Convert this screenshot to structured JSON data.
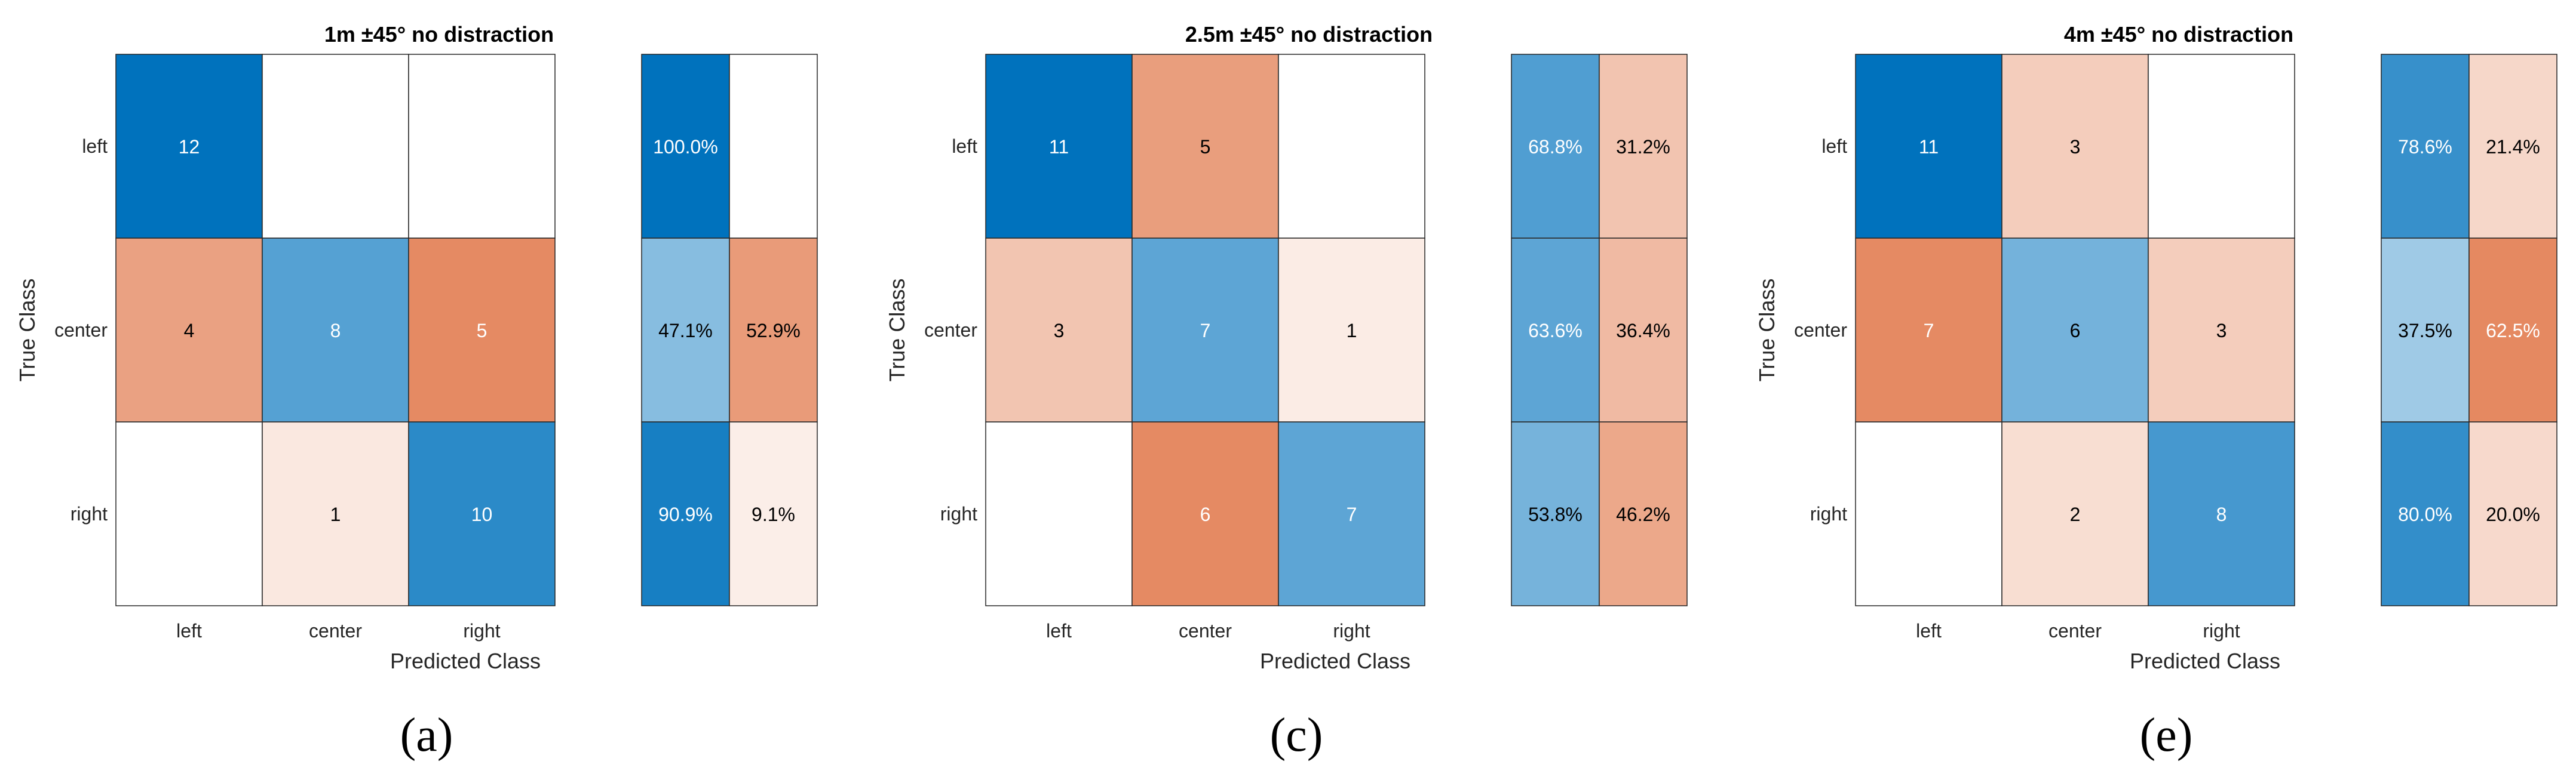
{
  "colors": {
    "positive": "#0072BD",
    "negative": "#D95319",
    "grid": "#262626"
  },
  "chart_data": [
    {
      "type": "heatmap",
      "caption": "(a)",
      "title": "1m ±45° no distraction",
      "xlabel": "Predicted Class",
      "ylabel": "True Class",
      "classes": [
        "left",
        "center",
        "right"
      ],
      "matrix": [
        [
          12,
          0,
          0
        ],
        [
          4,
          8,
          5
        ],
        [
          0,
          1,
          10
        ]
      ],
      "row_summary": [
        [
          "100.0%",
          ""
        ],
        [
          "47.1%",
          "52.9%"
        ],
        [
          "90.9%",
          "9.1%"
        ]
      ]
    },
    {
      "type": "heatmap",
      "caption": "(c)",
      "title": "2.5m ±45° no distraction",
      "xlabel": "Predicted Class",
      "ylabel": "True Class",
      "classes": [
        "left",
        "center",
        "right"
      ],
      "matrix": [
        [
          11,
          5,
          0
        ],
        [
          3,
          7,
          1
        ],
        [
          0,
          6,
          7
        ]
      ],
      "row_summary": [
        [
          "68.8%",
          "31.2%"
        ],
        [
          "63.6%",
          "36.4%"
        ],
        [
          "53.8%",
          "46.2%"
        ]
      ]
    },
    {
      "type": "heatmap",
      "caption": "(e)",
      "title": "4m ±45° no distraction",
      "xlabel": "Predicted Class",
      "ylabel": "True Class",
      "classes": [
        "left",
        "center",
        "right"
      ],
      "matrix": [
        [
          11,
          3,
          0
        ],
        [
          7,
          6,
          3
        ],
        [
          0,
          2,
          8
        ]
      ],
      "row_summary": [
        [
          "78.6%",
          "21.4%"
        ],
        [
          "37.5%",
          "62.5%"
        ],
        [
          "80.0%",
          "20.0%"
        ]
      ]
    }
  ]
}
